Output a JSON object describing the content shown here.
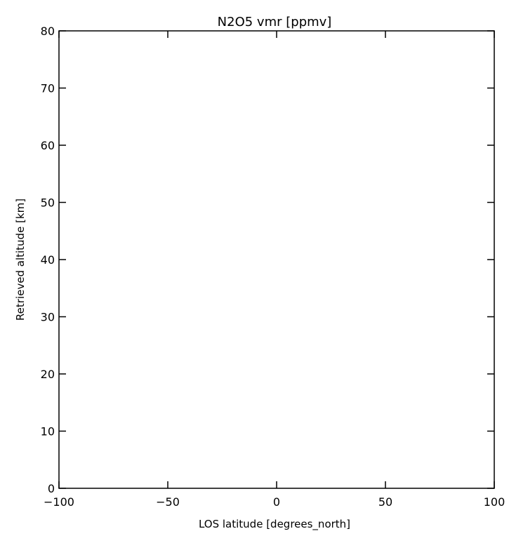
{
  "chart_data": {
    "type": "scatter",
    "title": "N2O5 vmr [ppmv]",
    "xlabel": "LOS latitude [degrees_north]",
    "ylabel": "Retrieved altitude [km]",
    "xlim": [
      -100,
      100
    ],
    "ylim": [
      0,
      80
    ],
    "xticks": [
      -100,
      -50,
      0,
      50,
      100
    ],
    "xtick_labels": [
      "−100",
      "−50",
      "0",
      "50",
      "100"
    ],
    "yticks": [
      0,
      10,
      20,
      30,
      40,
      50,
      60,
      70,
      80
    ],
    "ytick_labels": [
      "0",
      "10",
      "20",
      "30",
      "40",
      "50",
      "60",
      "70",
      "80"
    ],
    "grid": false,
    "series": []
  },
  "colors": {
    "axis": "#000000",
    "background": "#ffffff"
  }
}
